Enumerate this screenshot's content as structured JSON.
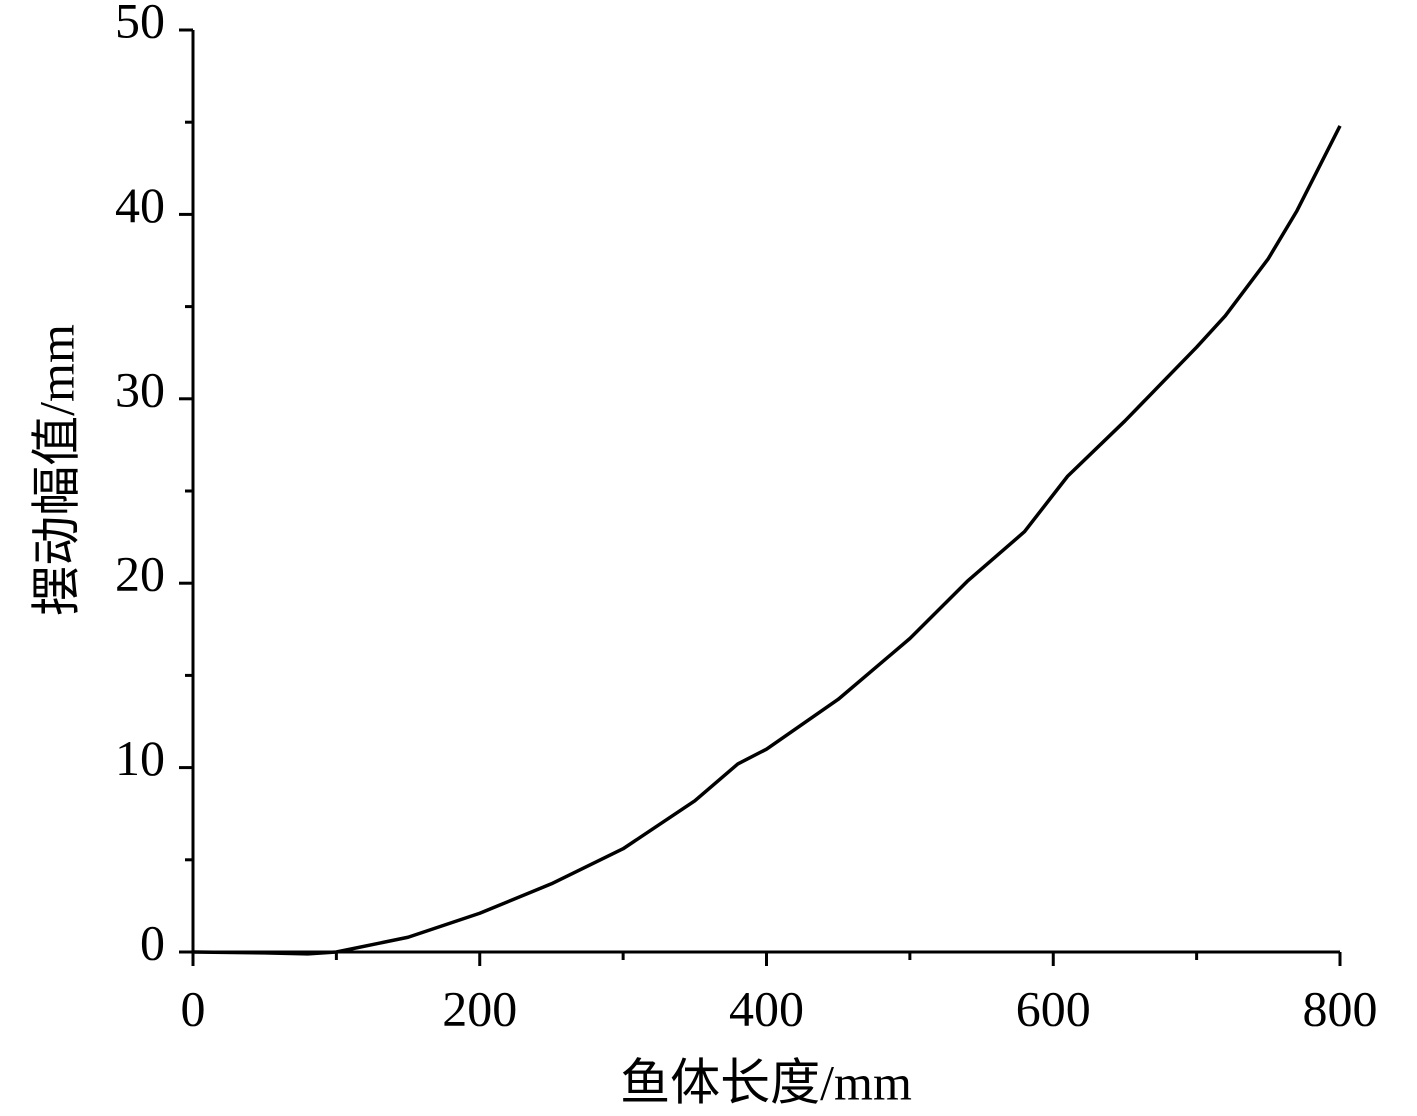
{
  "chart_data": {
    "type": "line",
    "xlabel": "鱼体长度/mm",
    "ylabel": "摆动幅值/mm",
    "x": [
      0,
      50,
      80,
      100,
      150,
      200,
      250,
      300,
      350,
      380,
      400,
      450,
      500,
      540,
      580,
      610,
      650,
      700,
      720,
      750,
      770,
      800
    ],
    "series": [
      {
        "color": "#000000",
        "values": [
          0,
          -0.05,
          -0.1,
          0,
          0.8,
          2.1,
          3.7,
          5.6,
          8.2,
          10.2,
          11,
          13.7,
          17,
          20.1,
          22.8,
          25.8,
          28.8,
          32.8,
          34.5,
          37.6,
          40.2,
          44.8
        ]
      }
    ],
    "xlim": [
      0,
      800
    ],
    "xticks": [
      0,
      200,
      400,
      600,
      800
    ],
    "xminorticks": [
      100,
      300,
      500,
      700
    ],
    "ylim": [
      0,
      50
    ],
    "yticks": [
      0,
      10,
      20,
      30,
      40,
      50
    ],
    "yminorticks": [
      5,
      15,
      25,
      35,
      45
    ],
    "grid": false
  }
}
